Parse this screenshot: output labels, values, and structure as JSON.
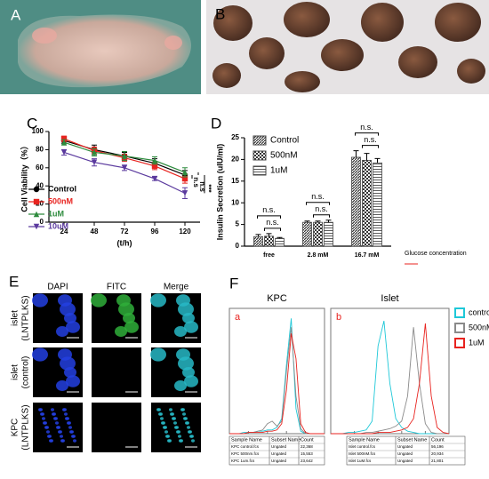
{
  "panels": [
    "A",
    "B",
    "C",
    "D",
    "E",
    "F"
  ],
  "chart_data": [
    {
      "type": "line",
      "categories": [
        "24",
        "48",
        "72",
        "96",
        "120"
      ],
      "x_label": "(t/h)",
      "y_label": "Cell Viability（%）",
      "ylim": [
        0,
        100
      ],
      "yticks": [
        0,
        20,
        40,
        60,
        80,
        100
      ],
      "series": [
        {
          "name": "Control",
          "color": "#000000",
          "marker": "circle",
          "values": [
            90,
            80,
            73,
            65,
            52
          ],
          "errors": [
            3,
            5,
            4,
            5,
            5
          ]
        },
        {
          "name": "500nM",
          "color": "#e8231f",
          "marker": "square",
          "values": [
            92,
            79,
            71,
            62,
            48
          ],
          "errors": [
            3,
            4,
            4,
            4,
            5
          ]
        },
        {
          "name": "1uM",
          "color": "#2e8b3e",
          "marker": "triangle",
          "values": [
            88,
            77,
            73,
            68,
            55
          ],
          "errors": [
            3,
            4,
            5,
            4,
            5
          ]
        },
        {
          "name": "10uM",
          "color": "#5b3a9e",
          "marker": "triangle-down",
          "values": [
            77,
            66,
            60,
            48,
            32
          ],
          "errors": [
            3,
            4,
            3,
            2,
            6
          ]
        }
      ],
      "annotations": [
        "n.s",
        "n.s",
        "***"
      ],
      "legend": "lower-left"
    },
    {
      "type": "bar",
      "categories": [
        "free",
        "2.8 mM",
        "16.7 mM"
      ],
      "x_label": "Glucose concentration",
      "y_label": "Insulin Secretion (uIU/ml)",
      "ylim": [
        0,
        25
      ],
      "yticks": [
        0,
        5,
        10,
        15,
        20,
        25
      ],
      "series": [
        {
          "name": "Control",
          "color": "#444444",
          "pattern": "diagonal",
          "values": [
            2.2,
            5.5,
            20.5
          ],
          "errors": [
            0.5,
            0.3,
            1.5
          ]
        },
        {
          "name": "500nM",
          "color": "#444444",
          "pattern": "checker",
          "values": [
            2.3,
            5.5,
            19.8
          ],
          "errors": [
            0.6,
            0.3,
            1.6
          ]
        },
        {
          "name": "1uM",
          "color": "#444444",
          "pattern": "horizontal",
          "values": [
            1.8,
            5.5,
            19.2
          ],
          "errors": [
            0.2,
            0.5,
            1.0
          ]
        }
      ],
      "annotations": [
        "n.s.",
        "n.s.",
        "n.s.",
        "n.s.",
        "n.s.",
        "n.s."
      ],
      "legend": "upper-left"
    },
    {
      "type": "line",
      "title": "KPC",
      "annotation": "a",
      "x": [
        0,
        5,
        10,
        15,
        20,
        25,
        30,
        35,
        40,
        45,
        50,
        55,
        60,
        65,
        70,
        75,
        80,
        85,
        90,
        95,
        100
      ],
      "xlim": [
        0,
        100
      ],
      "ylim": [
        0,
        100
      ],
      "series": [
        {
          "name": "control",
          "color": "#1ec8d8",
          "values": [
            0,
            0,
            0,
            1,
            1,
            1,
            2,
            2,
            3,
            3,
            5,
            12,
            55,
            92,
            20,
            2,
            0,
            0,
            0,
            0,
            0
          ]
        },
        {
          "name": "500nM",
          "color": "#8a8a8a",
          "values": [
            0,
            0,
            0,
            0,
            1,
            1,
            2,
            3,
            8,
            10,
            6,
            10,
            50,
            85,
            30,
            4,
            0,
            0,
            0,
            0,
            0
          ]
        },
        {
          "name": "1uM",
          "color": "#e8231f",
          "values": [
            0,
            0,
            0,
            0,
            1,
            1,
            1,
            1,
            2,
            2,
            3,
            8,
            35,
            80,
            60,
            8,
            1,
            0,
            0,
            0,
            0
          ]
        }
      ]
    },
    {
      "type": "line",
      "title": "Islet",
      "annotation": "b",
      "x": [
        0,
        5,
        10,
        15,
        20,
        25,
        30,
        35,
        40,
        45,
        50,
        55,
        60,
        65,
        70,
        75,
        80,
        85,
        90,
        95,
        100
      ],
      "xlim": [
        0,
        100
      ],
      "ylim": [
        0,
        100
      ],
      "series": [
        {
          "name": "control",
          "color": "#1ec8d8",
          "values": [
            0,
            0,
            0,
            1,
            1,
            2,
            3,
            10,
            70,
            90,
            40,
            12,
            5,
            2,
            1,
            0,
            0,
            0,
            0,
            0,
            0
          ]
        },
        {
          "name": "500nM",
          "color": "#8a8a8a",
          "values": [
            0,
            0,
            0,
            0,
            0,
            0,
            1,
            1,
            2,
            3,
            4,
            6,
            10,
            30,
            85,
            40,
            8,
            1,
            0,
            0,
            0
          ]
        },
        {
          "name": "1uM",
          "color": "#e8231f",
          "values": [
            0,
            0,
            0,
            0,
            0,
            0,
            0,
            0,
            1,
            1,
            1,
            2,
            3,
            5,
            12,
            40,
            88,
            30,
            5,
            1,
            0
          ]
        }
      ],
      "legend": "right"
    }
  ],
  "panel_e": {
    "columns": [
      "DAPI",
      "FITC",
      "Merge"
    ],
    "rows": [
      [
        "islet",
        "(LNTPLKS)"
      ],
      [
        "islet",
        "(control)"
      ],
      [
        "KPC",
        "(LNTPLKS)"
      ]
    ]
  },
  "flow_tables": [
    {
      "header": [
        "Sample Name",
        "Subset Name",
        "Count"
      ],
      "rows": [
        [
          "KPC control.fcs",
          "Ungated",
          "22,368"
        ],
        [
          "KPC 500nm.fcs",
          "Ungated",
          "15,553"
        ],
        [
          "KPC 1um.fcs",
          "Ungated",
          "23,642"
        ]
      ]
    },
    {
      "header": [
        "Sample Name",
        "Subset Name",
        "Count"
      ],
      "rows": [
        [
          "Islet control.fcs",
          "Ungated",
          "56,196"
        ],
        [
          "Islet 500nM.fcs",
          "Ungated",
          "20,934"
        ],
        [
          "Islet 1uM.fcs",
          "Ungated",
          "21,801"
        ]
      ]
    }
  ]
}
